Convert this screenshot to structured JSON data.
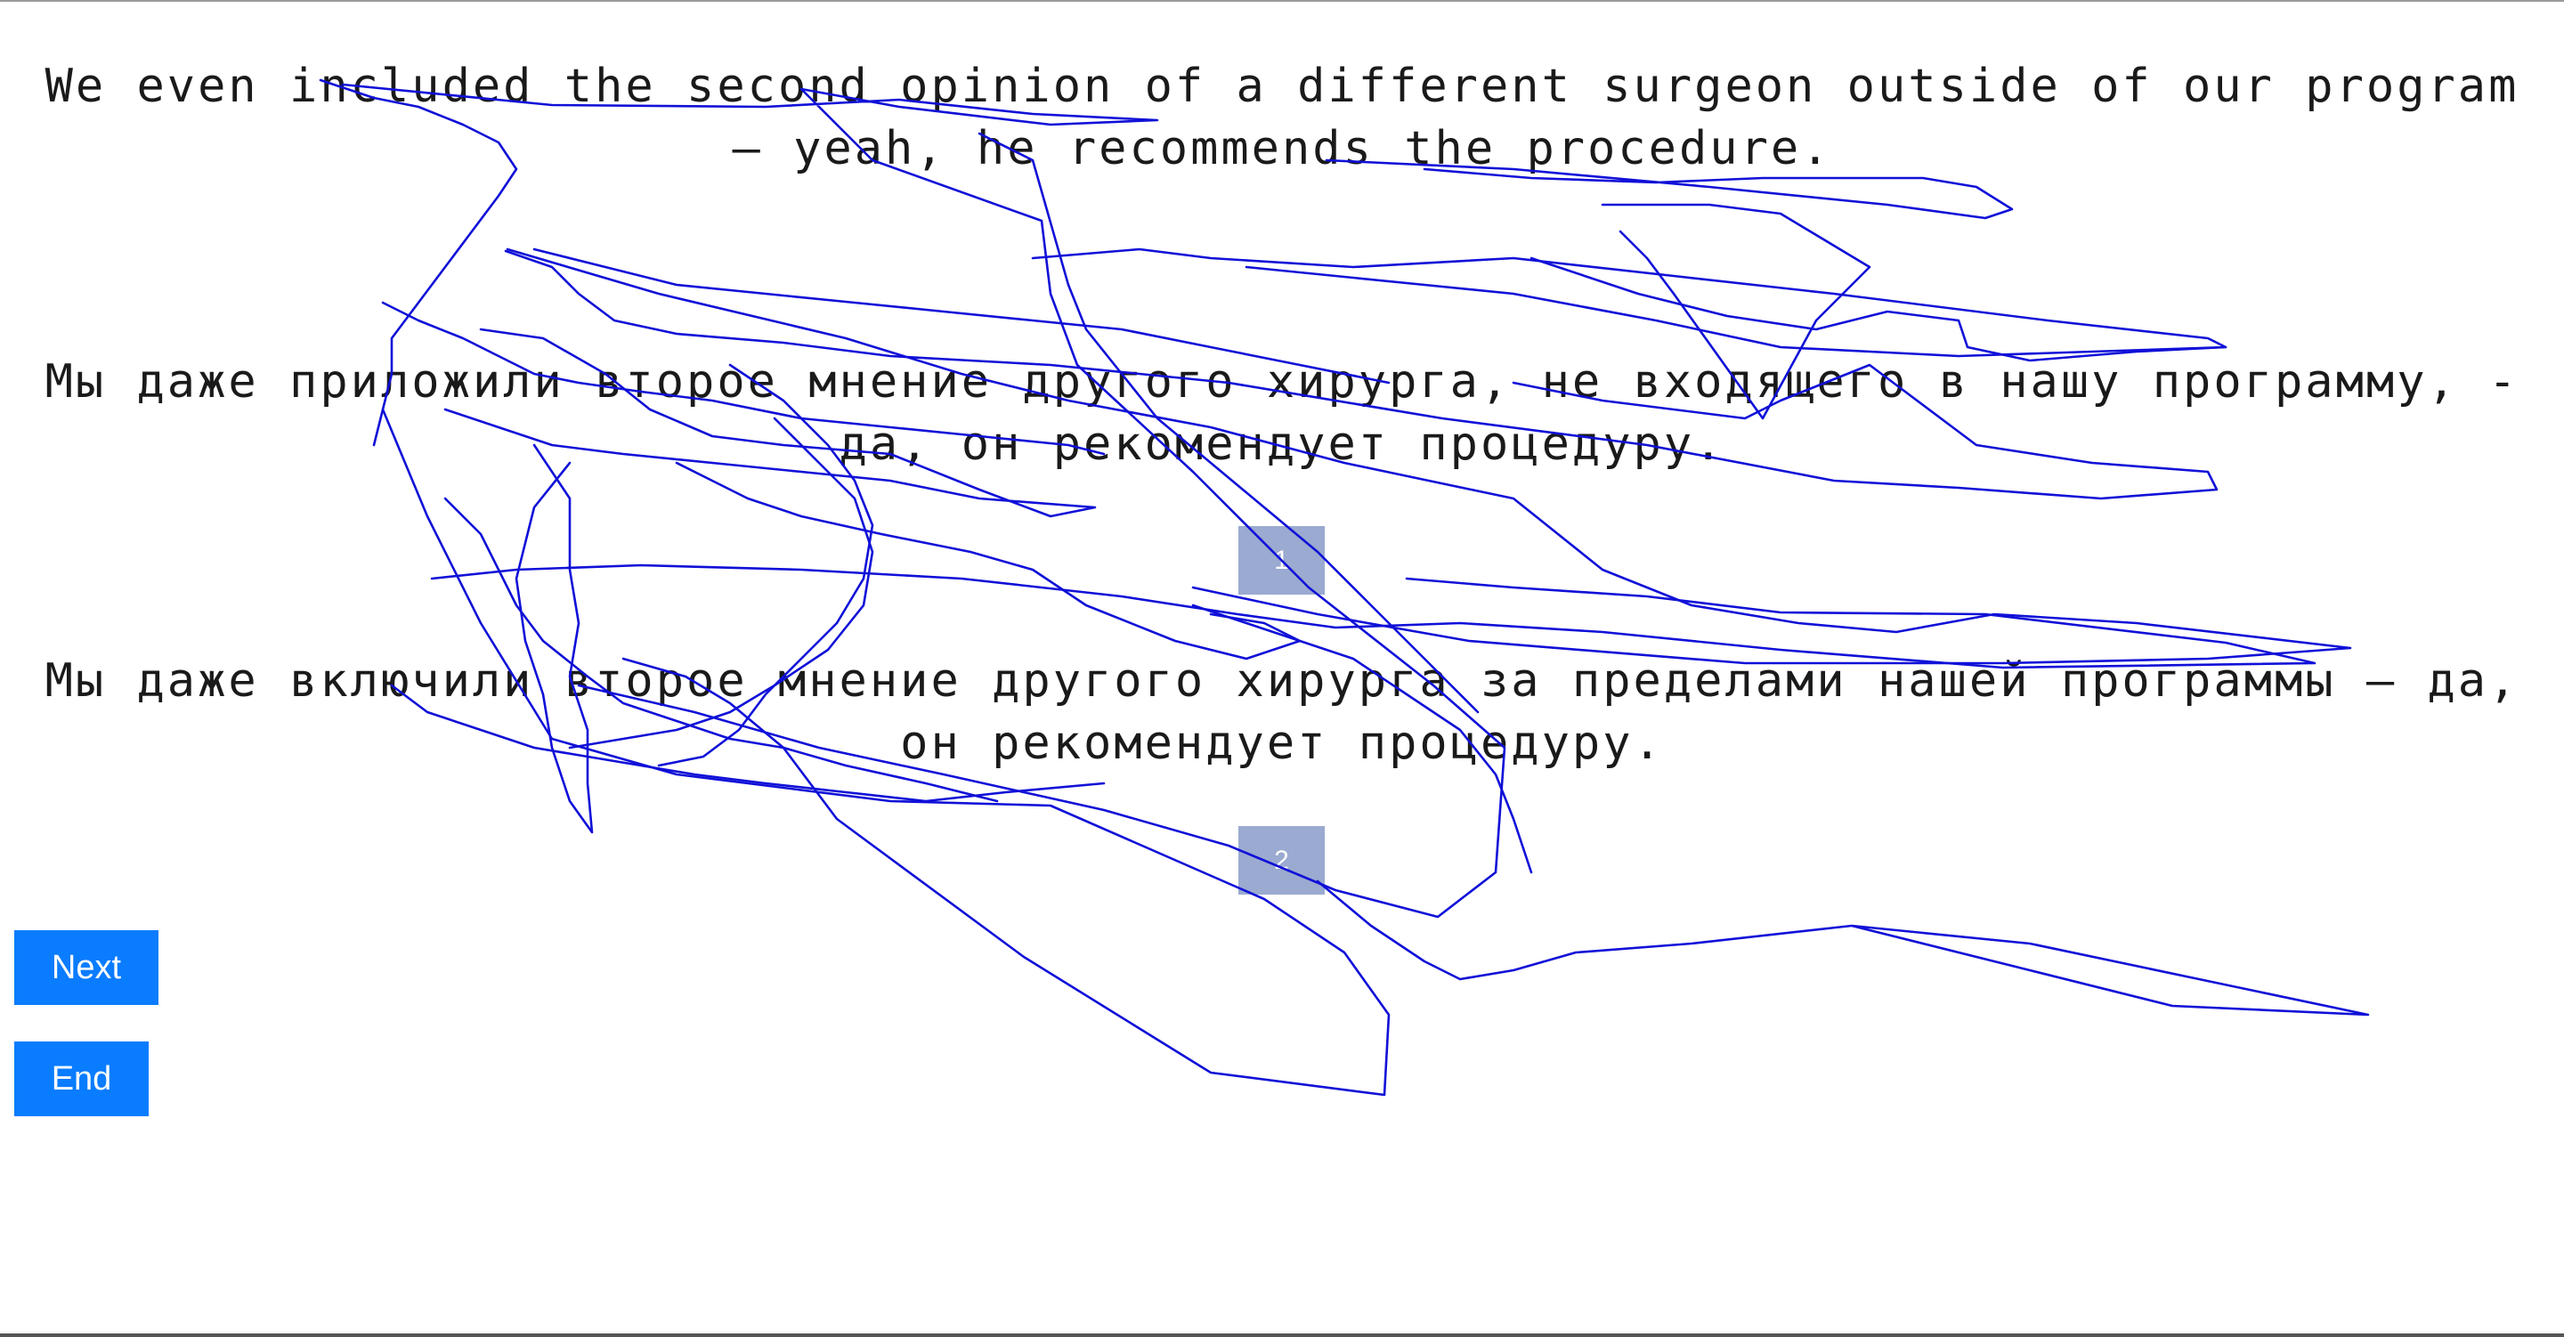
{
  "source_text": "We even included the second opinion of a different surgeon outside of our program — yeah, he recommends the procedure.",
  "options": [
    {
      "number": "1",
      "text": "Мы даже приложили второе мнение другого хирурга, не входящего в нашу программу, - да, он рекомендует процедуру."
    },
    {
      "number": "2",
      "text": "Мы даже включили второе мнение другого хирурга за пределами нашей программы — да, он рекомендует процедуру."
    }
  ],
  "buttons": {
    "next_label": "Next",
    "end_label": "End"
  },
  "colors": {
    "button": "#0a7cff",
    "badge": "#9aaad0",
    "trace": "#1010d8"
  }
}
